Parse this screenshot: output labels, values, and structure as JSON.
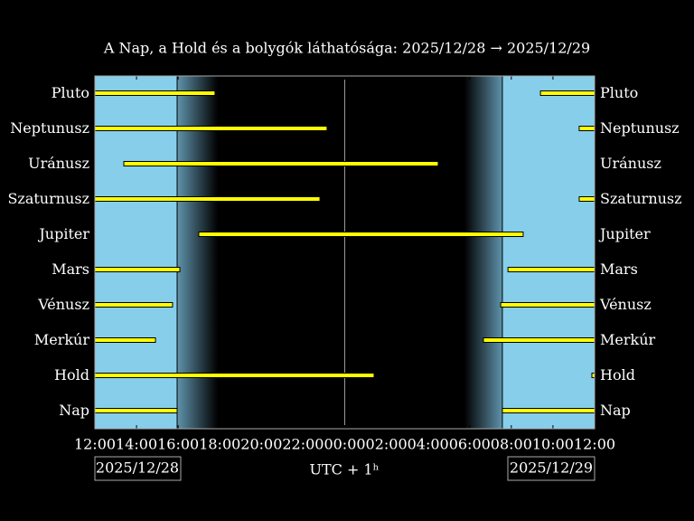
{
  "chart_data": {
    "type": "timeline",
    "title": "A Nap, a Hold és a bolygók láthatósága: 2025/12/28 → 2025/12/29",
    "x_label": "UTC + 1ʰ",
    "date_labels": [
      "2025/12/28",
      "2025/12/29"
    ],
    "xlim": [
      12,
      36
    ],
    "xticks": [
      {
        "value": 12,
        "label": "12:00"
      },
      {
        "value": 14,
        "label": "14:00"
      },
      {
        "value": 16,
        "label": "16:00"
      },
      {
        "value": 18,
        "label": "18:00"
      },
      {
        "value": 20,
        "label": "20:00"
      },
      {
        "value": 22,
        "label": "22:00"
      },
      {
        "value": 24,
        "label": "00:00"
      },
      {
        "value": 26,
        "label": "02:00"
      },
      {
        "value": 28,
        "label": "04:00"
      },
      {
        "value": 30,
        "label": "06:00"
      },
      {
        "value": 32,
        "label": "08:00"
      },
      {
        "value": 34,
        "label": "10:00"
      },
      {
        "value": 36,
        "label": "12:00"
      }
    ],
    "markers_x": [
      24
    ],
    "day_color": "#87ceeb",
    "bar_color": "#ffff00",
    "series": [
      {
        "name": "Pluto",
        "segments": [
          [
            12,
            17.77
          ],
          [
            33.4,
            36
          ]
        ]
      },
      {
        "name": "Neptunusz",
        "segments": [
          [
            12,
            23.15
          ],
          [
            35.26,
            36
          ]
        ]
      },
      {
        "name": "Uránusz",
        "segments": [
          [
            13.39,
            28.49
          ]
        ]
      },
      {
        "name": "Szaturnusz",
        "segments": [
          [
            12,
            22.81
          ],
          [
            35.26,
            36
          ]
        ]
      },
      {
        "name": "Jupiter",
        "segments": [
          [
            16.99,
            32.57
          ]
        ]
      },
      {
        "name": "Mars",
        "segments": [
          [
            12,
            16.08
          ],
          [
            31.84,
            36
          ]
        ]
      },
      {
        "name": "Vénusz",
        "segments": [
          [
            12,
            15.73
          ],
          [
            31.49,
            36
          ]
        ]
      },
      {
        "name": "Merkúr",
        "segments": [
          [
            12,
            14.91
          ],
          [
            30.66,
            36
          ]
        ]
      },
      {
        "name": "Hold",
        "segments": [
          [
            12,
            25.41
          ],
          [
            35.87,
            36
          ]
        ]
      },
      {
        "name": "Nap",
        "segments": [
          [
            12,
            15.95
          ],
          [
            31.57,
            36
          ]
        ]
      }
    ]
  }
}
